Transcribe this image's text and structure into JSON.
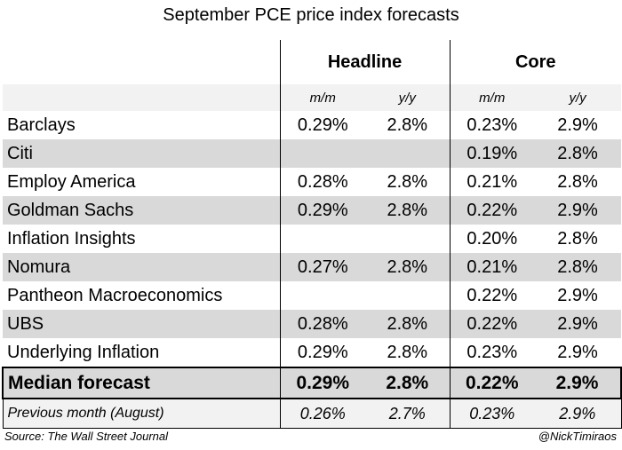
{
  "title": "September PCE price index forecasts",
  "chart_data": {
    "type": "table",
    "title": "September PCE price index forecasts",
    "column_groups": [
      "Headline",
      "Core"
    ],
    "columns": [
      "m/m",
      "y/y",
      "m/m",
      "y/y"
    ],
    "rows": [
      {
        "label": "Barclays",
        "values": [
          "0.29%",
          "2.8%",
          "0.23%",
          "2.9%"
        ]
      },
      {
        "label": "Citi",
        "values": [
          "",
          "",
          "0.19%",
          "2.8%"
        ]
      },
      {
        "label": "Employ America",
        "values": [
          "0.28%",
          "2.8%",
          "0.21%",
          "2.8%"
        ]
      },
      {
        "label": "Goldman Sachs",
        "values": [
          "0.29%",
          "2.8%",
          "0.22%",
          "2.9%"
        ]
      },
      {
        "label": "Inflation Insights",
        "values": [
          "",
          "",
          "0.20%",
          "2.8%"
        ]
      },
      {
        "label": "Nomura",
        "values": [
          "0.27%",
          "2.8%",
          "0.21%",
          "2.8%"
        ]
      },
      {
        "label": "Pantheon Macroeconomics",
        "values": [
          "",
          "",
          "0.22%",
          "2.9%"
        ]
      },
      {
        "label": "UBS",
        "values": [
          "0.28%",
          "2.8%",
          "0.22%",
          "2.9%"
        ]
      },
      {
        "label": "Underlying Inflation",
        "values": [
          "0.29%",
          "2.8%",
          "0.23%",
          "2.9%"
        ]
      }
    ],
    "median": {
      "label": "Median forecast",
      "values": [
        "0.29%",
        "2.8%",
        "0.22%",
        "2.9%"
      ]
    },
    "previous": {
      "label": "Previous month (August)",
      "values": [
        "0.26%",
        "2.7%",
        "0.23%",
        "2.9%"
      ]
    }
  },
  "footer": {
    "source": "Source: The Wall Street Journal",
    "handle": "@NickTimiraos"
  },
  "colors": {
    "stripe": "#d9d9d9",
    "light": "#f2f2f2"
  }
}
